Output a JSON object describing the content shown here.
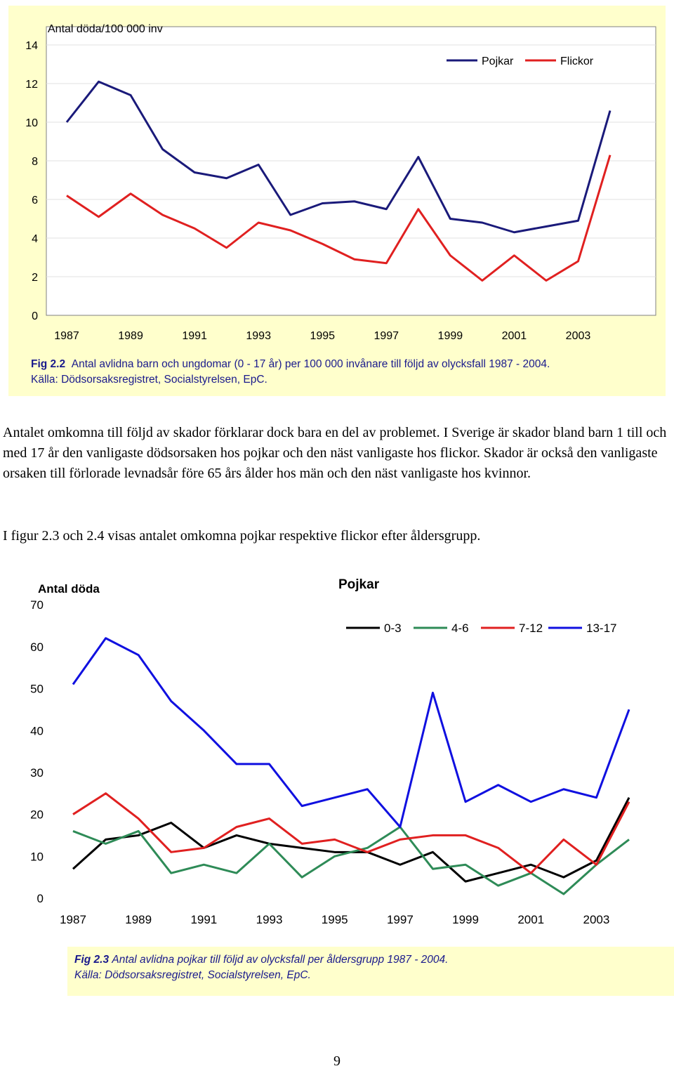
{
  "chart_data": [
    {
      "type": "line",
      "ylabel": "Antal döda/100 000 inv",
      "ylim": [
        0,
        14
      ],
      "y_ticks": [
        0,
        2,
        4,
        6,
        8,
        10,
        12,
        14
      ],
      "x": [
        1987,
        1988,
        1989,
        1990,
        1991,
        1992,
        1993,
        1994,
        1995,
        1996,
        1997,
        1998,
        1999,
        2000,
        2001,
        2002,
        2003,
        2004
      ],
      "x_tick_labels": [
        "1987",
        "1989",
        "1991",
        "1993",
        "1995",
        "1997",
        "1999",
        "2001",
        "2003"
      ],
      "grid": true,
      "legend_position": "top-right",
      "series": [
        {
          "name": "Pojkar",
          "color": "#1a1a7a",
          "values": [
            10.0,
            12.1,
            11.4,
            8.6,
            7.4,
            7.1,
            7.8,
            5.2,
            5.8,
            5.9,
            5.5,
            8.2,
            5.0,
            4.8,
            4.3,
            4.6,
            4.9,
            10.6
          ]
        },
        {
          "name": "Flickor",
          "color": "#e02020",
          "values": [
            6.2,
            5.1,
            6.3,
            5.2,
            4.5,
            3.5,
            4.8,
            4.4,
            3.7,
            2.9,
            2.7,
            5.5,
            3.1,
            1.8,
            3.1,
            1.8,
            2.8,
            8.3
          ]
        }
      ]
    },
    {
      "type": "line",
      "title": "Pojkar",
      "ylabel": "Antal döda",
      "ylim": [
        0,
        70
      ],
      "y_ticks": [
        0,
        10,
        20,
        30,
        40,
        50,
        60,
        70
      ],
      "x": [
        1987,
        1988,
        1989,
        1990,
        1991,
        1992,
        1993,
        1994,
        1995,
        1996,
        1997,
        1998,
        1999,
        2000,
        2001,
        2002,
        2003,
        2004
      ],
      "x_tick_labels": [
        "1987",
        "1989",
        "1991",
        "1993",
        "1995",
        "1997",
        "1999",
        "2001",
        "2003"
      ],
      "grid": false,
      "legend_position": "top-right",
      "series": [
        {
          "name": "0-3",
          "color": "#000000",
          "values": [
            7,
            14,
            15,
            18,
            12,
            15,
            13,
            12,
            11,
            11,
            8,
            11,
            4,
            6,
            8,
            5,
            9,
            24
          ]
        },
        {
          "name": "4-6",
          "color": "#2e8b57",
          "values": [
            16,
            13,
            16,
            6,
            8,
            6,
            13,
            5,
            10,
            12,
            17,
            7,
            8,
            3,
            6,
            1,
            8,
            14
          ]
        },
        {
          "name": "7-12",
          "color": "#e02020",
          "values": [
            20,
            25,
            19,
            11,
            12,
            17,
            19,
            13,
            14,
            11,
            14,
            15,
            15,
            12,
            6,
            14,
            8,
            23
          ]
        },
        {
          "name": "13-17",
          "color": "#1010e0",
          "values": [
            51,
            62,
            58,
            47,
            40,
            32,
            32,
            22,
            24,
            26,
            17,
            49,
            23,
            27,
            23,
            26,
            24,
            45
          ]
        }
      ]
    }
  ],
  "captions": {
    "fig1_label": "Fig 2.2",
    "fig1_text": "Antal avlidna barn och ungdomar (0 - 17 år) per 100 000 invånare till följd av olycksfall 1987 - 2004.",
    "fig1_source": "Källa: Dödsorsaksregistret, Socialstyrelsen, EpC.",
    "fig2_label": "Fig 2.3",
    "fig2_text": "Antal avlidna pojkar till följd av olycksfall per åldersgrupp 1987 - 2004.",
    "fig2_source": "Källa: Dödsorsaksregistret, Socialstyrelsen, EpC."
  },
  "body": {
    "paragraph1": "Antalet omkomna till följd av skador förklarar dock bara en del av problemet. I Sverige är skador bland barn 1 till och med 17 år den vanligaste dödsorsaken hos pojkar och den näst vanligaste hos flickor. Skador är också den vanligaste orsaken till förlorade levnadsår före 65 års ålder hos män och den näst vanligaste hos kvinnor.",
    "paragraph2": "I figur 2.3 och 2.4 visas antalet omkomna pojkar respektive flickor efter åldersgrupp."
  },
  "page_number": "9"
}
